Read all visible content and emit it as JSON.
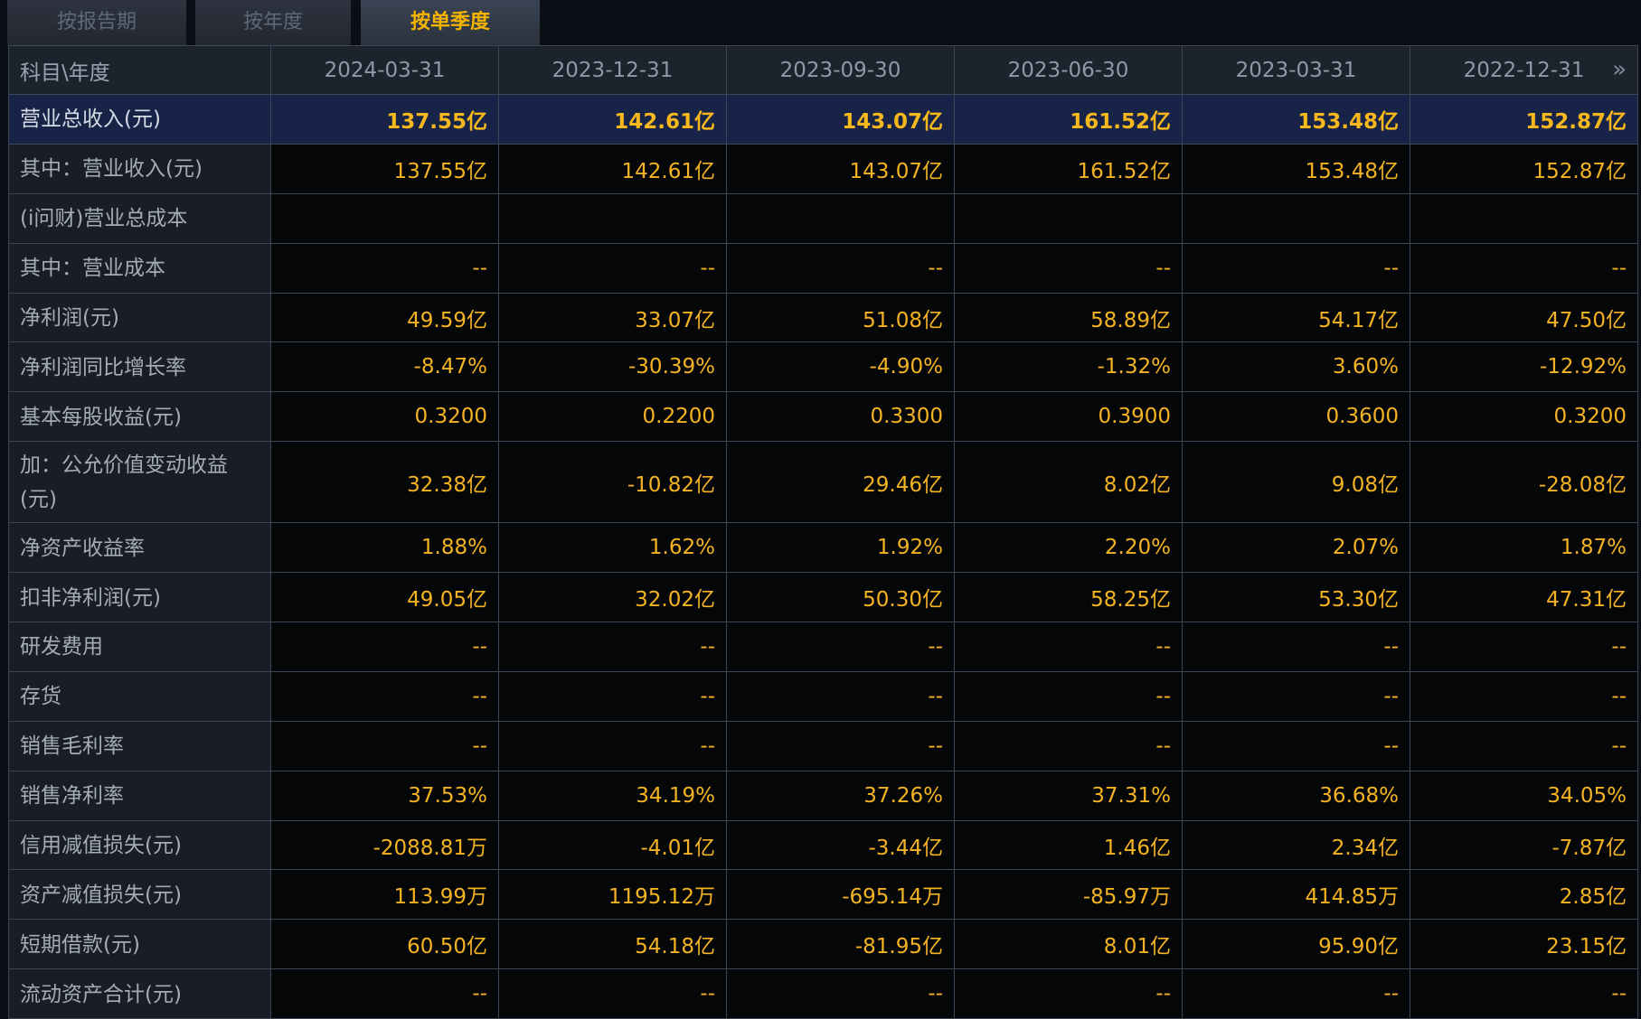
{
  "tabs": [
    {
      "label": "按报告期",
      "active": false
    },
    {
      "label": "按年度",
      "active": false
    },
    {
      "label": "按单季度",
      "active": true
    }
  ],
  "table": {
    "corner_label": "科目\\年度",
    "more_icon": "double-chevron-right-icon",
    "columns": [
      "2024-03-31",
      "2023-12-31",
      "2023-09-30",
      "2023-06-30",
      "2023-03-31",
      "2022-12-31"
    ],
    "rows": [
      {
        "label": "营业总收入(元)",
        "highlight": true,
        "values": [
          "137.55亿",
          "142.61亿",
          "143.07亿",
          "161.52亿",
          "153.48亿",
          "152.87亿"
        ]
      },
      {
        "label": "其中：营业收入(元)",
        "values": [
          "137.55亿",
          "142.61亿",
          "143.07亿",
          "161.52亿",
          "153.48亿",
          "152.87亿"
        ]
      },
      {
        "label": "(i问财)营业总成本",
        "values": [
          "",
          "",
          "",
          "",
          "",
          ""
        ]
      },
      {
        "label": "其中：营业成本",
        "values": [
          "--",
          "--",
          "--",
          "--",
          "--",
          "--"
        ]
      },
      {
        "label": "净利润(元)",
        "values": [
          "49.59亿",
          "33.07亿",
          "51.08亿",
          "58.89亿",
          "54.17亿",
          "47.50亿"
        ]
      },
      {
        "label": "净利润同比增长率",
        "values": [
          "-8.47%",
          "-30.39%",
          "-4.90%",
          "-1.32%",
          "3.60%",
          "-12.92%"
        ]
      },
      {
        "label": "基本每股收益(元)",
        "values": [
          "0.3200",
          "0.2200",
          "0.3300",
          "0.3900",
          "0.3600",
          "0.3200"
        ]
      },
      {
        "label": "加：公允价值变动收益(元)",
        "tall": true,
        "values": [
          "32.38亿",
          "-10.82亿",
          "29.46亿",
          "8.02亿",
          "9.08亿",
          "-28.08亿"
        ]
      },
      {
        "label": "净资产收益率",
        "values": [
          "1.88%",
          "1.62%",
          "1.92%",
          "2.20%",
          "2.07%",
          "1.87%"
        ]
      },
      {
        "label": "扣非净利润(元)",
        "values": [
          "49.05亿",
          "32.02亿",
          "50.30亿",
          "58.25亿",
          "53.30亿",
          "47.31亿"
        ]
      },
      {
        "label": "研发费用",
        "values": [
          "--",
          "--",
          "--",
          "--",
          "--",
          "--"
        ]
      },
      {
        "label": "存货",
        "values": [
          "--",
          "--",
          "--",
          "--",
          "--",
          "--"
        ]
      },
      {
        "label": "销售毛利率",
        "values": [
          "--",
          "--",
          "--",
          "--",
          "--",
          "--"
        ]
      },
      {
        "label": "销售净利率",
        "values": [
          "37.53%",
          "34.19%",
          "37.26%",
          "37.31%",
          "36.68%",
          "34.05%"
        ]
      },
      {
        "label": "信用减值损失(元)",
        "values": [
          "-2088.81万",
          "-4.01亿",
          "-3.44亿",
          "1.46亿",
          "2.34亿",
          "-7.87亿"
        ]
      },
      {
        "label": "资产减值损失(元)",
        "values": [
          "113.99万",
          "1195.12万",
          "-695.14万",
          "-85.97万",
          "414.85万",
          "2.85亿"
        ]
      },
      {
        "label": "短期借款(元)",
        "values": [
          "60.50亿",
          "54.18亿",
          "-81.95亿",
          "8.01亿",
          "95.90亿",
          "23.15亿"
        ]
      },
      {
        "label": "流动资产合计(元)",
        "values": [
          "--",
          "--",
          "--",
          "--",
          "--",
          "--"
        ]
      }
    ]
  }
}
